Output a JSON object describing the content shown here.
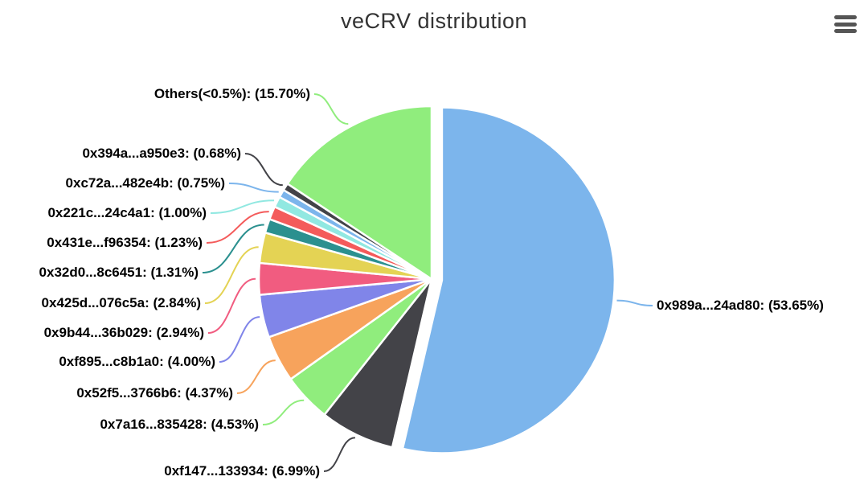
{
  "header": {
    "icons": {
      "context_menu": "hamburger-icon"
    }
  },
  "chart_data": {
    "type": "pie",
    "title": "veCRV distribution",
    "value_unit": "%",
    "label_format": "{label}: ({value}%)",
    "start_angle_deg": 0,
    "direction": "clockwise",
    "legend_position": "none",
    "segments": [
      {
        "label": "0x989a...24ad80",
        "value": 53.65,
        "color": "#7cb5ec",
        "sliced": true
      },
      {
        "label": "0xf147...133934",
        "value": 6.99,
        "color": "#434348",
        "sliced": false
      },
      {
        "label": "0x7a16...835428",
        "value": 4.53,
        "color": "#90ed7d",
        "sliced": false
      },
      {
        "label": "0x52f5...3766b6",
        "value": 4.37,
        "color": "#f7a35c",
        "sliced": false
      },
      {
        "label": "0xf895...c8b1a0",
        "value": 4.0,
        "color": "#8085e9",
        "sliced": false
      },
      {
        "label": "0x9b44...36b029",
        "value": 2.94,
        "color": "#f15c80",
        "sliced": false
      },
      {
        "label": "0x425d...076c5a",
        "value": 2.84,
        "color": "#e4d354",
        "sliced": false
      },
      {
        "label": "0x32d0...8c6451",
        "value": 1.31,
        "color": "#2b908f",
        "sliced": false
      },
      {
        "label": "0x431e...f96354",
        "value": 1.23,
        "color": "#f45b5b",
        "sliced": false
      },
      {
        "label": "0x221c...24c4a1",
        "value": 1.0,
        "color": "#91e8e1",
        "sliced": false
      },
      {
        "label": "0xc72a...482e4b",
        "value": 0.75,
        "color": "#7cb5ec",
        "sliced": false
      },
      {
        "label": "0x394a...a950e3",
        "value": 0.68,
        "color": "#434348",
        "sliced": false
      },
      {
        "label": "Others(<0.5%)",
        "value": 15.7,
        "color": "#90ed7d",
        "sliced": false
      }
    ]
  }
}
